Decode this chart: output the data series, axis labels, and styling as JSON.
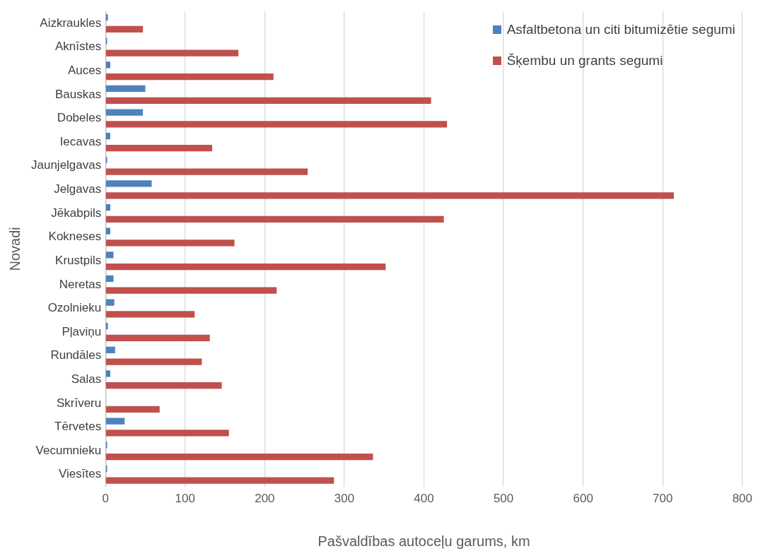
{
  "chart_data": {
    "type": "bar",
    "orientation": "horizontal",
    "xlabel": "Pašvaldības autoceļu garums, km",
    "ylabel": "Novadi",
    "categories": [
      "Aizkraukles",
      "Aknīstes",
      "Auces",
      "Bauskas",
      "Dobeles",
      "Iecavas",
      "Jaunjelgavas",
      "Jelgavas",
      "Jēkabpils",
      "Kokneses",
      "Krustpils",
      "Neretas",
      "Ozolnieku",
      "Pļaviņu",
      "Rundāles",
      "Salas",
      "Skrīveru",
      "Tērvetes",
      "Vecumnieku",
      "Viesītes"
    ],
    "series": [
      {
        "name": "Asfaltbetona un citi bitumizētie segumi",
        "color": "#4f81bd",
        "values": [
          3,
          2,
          6,
          50,
          47,
          6,
          2,
          58,
          6,
          6,
          10,
          10,
          11,
          3,
          12,
          6,
          0,
          24,
          2,
          2
        ]
      },
      {
        "name": "Šķembu un grants segumi",
        "color": "#c0504d",
        "values": [
          47,
          167,
          211,
          409,
          429,
          134,
          254,
          714,
          425,
          162,
          352,
          215,
          112,
          131,
          121,
          146,
          68,
          155,
          336,
          287
        ]
      }
    ],
    "xlim": [
      0,
      800
    ],
    "xticks": [
      0,
      100,
      200,
      300,
      400,
      500,
      600,
      700,
      800
    ],
    "grid": "x",
    "legend": "top right"
  }
}
